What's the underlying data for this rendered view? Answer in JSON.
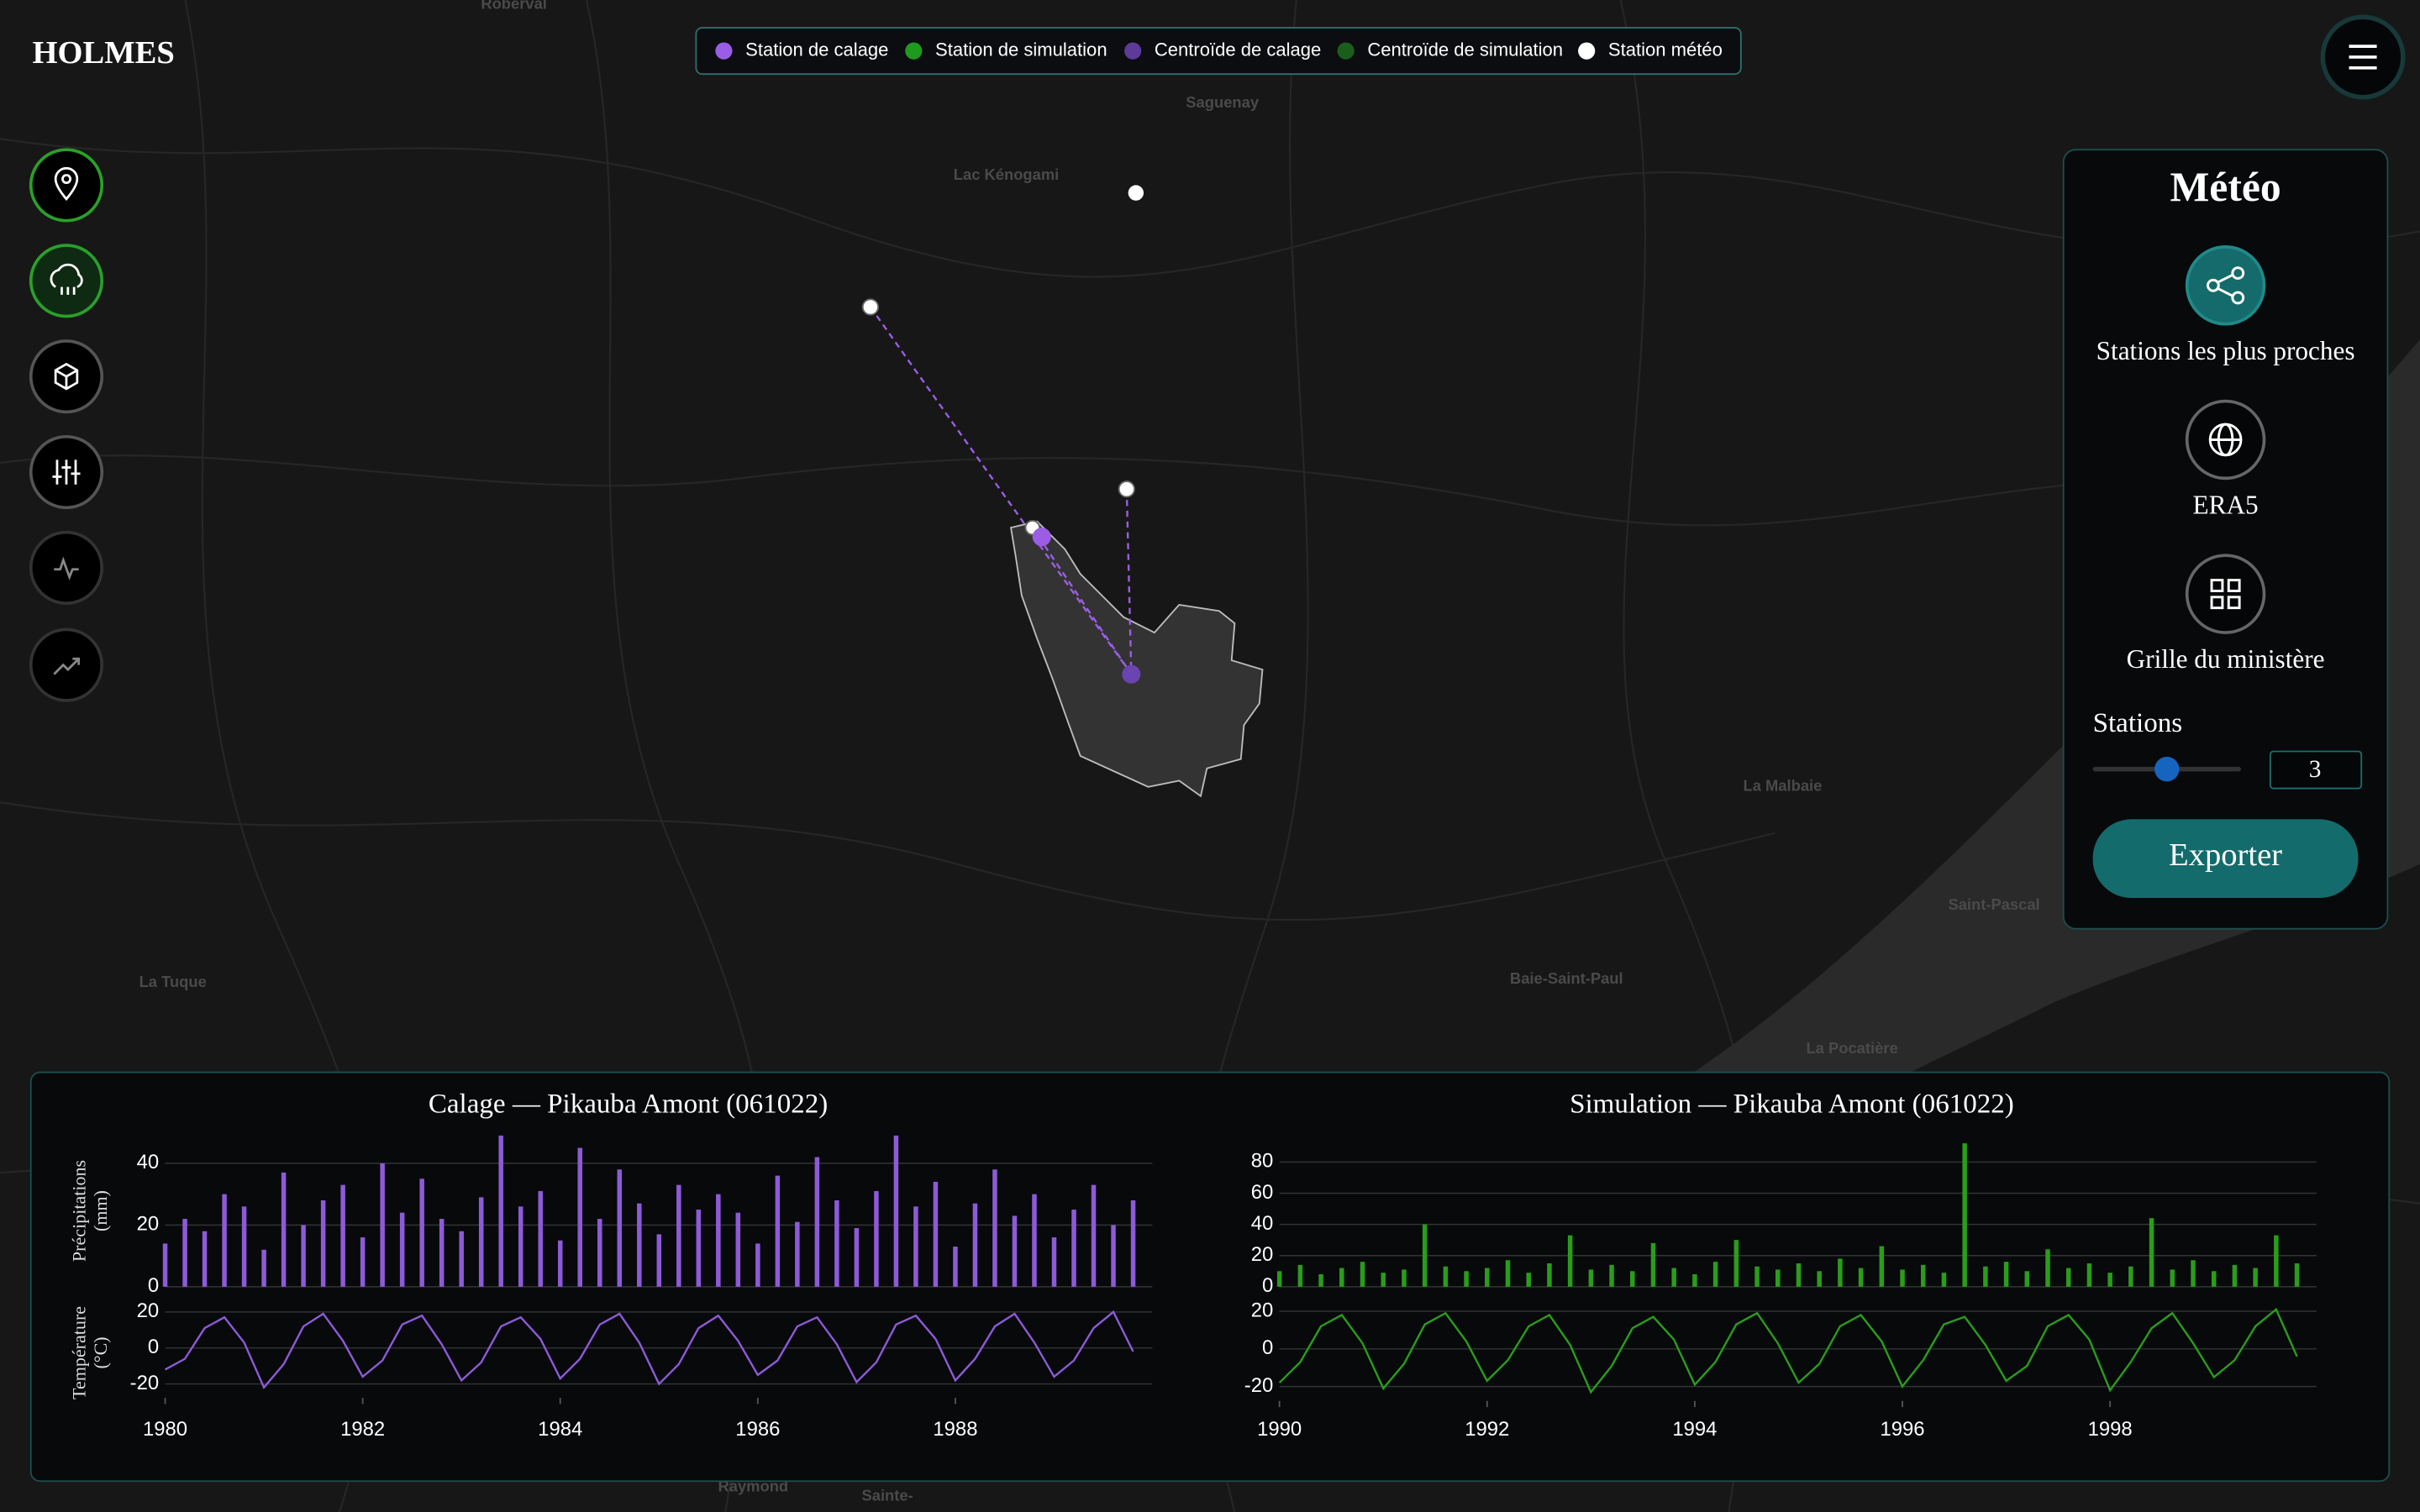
{
  "header": {
    "title": "HOLMES"
  },
  "legend": [
    {
      "label": "Station de calage",
      "color": "#9b5de5"
    },
    {
      "label": "Station de simulation",
      "color": "#1f9a1f"
    },
    {
      "label": "Centroïde de calage",
      "color": "#5e3a99"
    },
    {
      "label": "Centroïde de simulation",
      "color": "#1b5e1b"
    },
    {
      "label": "Station météo",
      "color": "#ffffff"
    }
  ],
  "map_labels": [
    "Roberval",
    "Saguenay",
    "Lac Kénogami",
    "La Malbaie",
    "Saint-Pascal",
    "La Tuque",
    "Baie-Saint-Paul",
    "La Pocatière",
    "Raymond",
    "Sainte-"
  ],
  "panel": {
    "title": "Météo",
    "options": [
      "Stations les plus proches",
      "ERA5",
      "Grille du ministère"
    ],
    "stations_label": "Stations",
    "stations_value": 3,
    "export": "Exporter"
  },
  "chart_data": [
    {
      "type": "bar",
      "title": "Calage — Pikauba Amont (061022)",
      "ylabel": "Précipitations (mm)",
      "color": "#8e5ad8",
      "x": [
        1980,
        1980.2,
        1980.4,
        1980.6,
        1980.8,
        1981,
        1981.2,
        1981.4,
        1981.6,
        1981.8,
        1982,
        1982.2,
        1982.4,
        1982.6,
        1982.8,
        1983,
        1983.2,
        1983.4,
        1983.6,
        1983.8,
        1984,
        1984.2,
        1984.4,
        1984.6,
        1984.8,
        1985,
        1985.2,
        1985.4,
        1985.6,
        1985.8,
        1986,
        1986.2,
        1986.4,
        1986.6,
        1986.8,
        1987,
        1987.2,
        1987.4,
        1987.6,
        1987.8,
        1988,
        1988.2,
        1988.4,
        1988.6,
        1988.8,
        1989,
        1989.2,
        1989.4,
        1989.6,
        1989.8
      ],
      "values": [
        14,
        22,
        18,
        30,
        26,
        12,
        37,
        20,
        28,
        33,
        16,
        40,
        24,
        35,
        22,
        18,
        29,
        49,
        26,
        31,
        15,
        45,
        22,
        38,
        27,
        17,
        33,
        25,
        30,
        24,
        14,
        36,
        21,
        42,
        28,
        19,
        31,
        49,
        26,
        34,
        13,
        27,
        38,
        23,
        30,
        16,
        25,
        33,
        20,
        28
      ],
      "xlim": [
        1980,
        1989.9
      ],
      "ylim": [
        0,
        50
      ],
      "yticks": [
        0,
        20,
        40
      ],
      "grid": true
    },
    {
      "type": "line",
      "ylabel": "Température (°C)",
      "color": "#8e5ad8",
      "x": [
        1980,
        1980.2,
        1980.4,
        1980.6,
        1980.8,
        1981,
        1981.2,
        1981.4,
        1981.6,
        1981.8,
        1982,
        1982.2,
        1982.4,
        1982.6,
        1982.8,
        1983,
        1983.2,
        1983.4,
        1983.6,
        1983.8,
        1984,
        1984.2,
        1984.4,
        1984.6,
        1984.8,
        1985,
        1985.2,
        1985.4,
        1985.6,
        1985.8,
        1986,
        1986.2,
        1986.4,
        1986.6,
        1986.8,
        1987,
        1987.2,
        1987.4,
        1987.6,
        1987.8,
        1988,
        1988.2,
        1988.4,
        1988.6,
        1988.8,
        1989,
        1989.2,
        1989.4,
        1989.6,
        1989.8
      ],
      "values": [
        -12,
        -6,
        11,
        17,
        3,
        -22,
        -9,
        12,
        19,
        4,
        -16,
        -7,
        13,
        18,
        2,
        -18,
        -8,
        12,
        17,
        5,
        -17,
        -6,
        13,
        19,
        3,
        -20,
        -9,
        11,
        18,
        4,
        -15,
        -7,
        12,
        17,
        2,
        -19,
        -8,
        13,
        18,
        5,
        -18,
        -6,
        12,
        19,
        3,
        -16,
        -7,
        11,
        20,
        -2
      ],
      "xlim": [
        1980,
        1989.9
      ],
      "ylim": [
        -26,
        22
      ],
      "yticks": [
        -20,
        0,
        20
      ],
      "xticks": [
        1980,
        1982,
        1984,
        1986,
        1988
      ],
      "grid": true
    },
    {
      "type": "bar",
      "title": "Simulation — Pikauba Amont (061022)",
      "color": "#2a9d1a",
      "x": [
        1990,
        1990.2,
        1990.4,
        1990.6,
        1990.8,
        1991,
        1991.2,
        1991.4,
        1991.6,
        1991.8,
        1992,
        1992.2,
        1992.4,
        1992.6,
        1992.8,
        1993,
        1993.2,
        1993.4,
        1993.6,
        1993.8,
        1994,
        1994.2,
        1994.4,
        1994.6,
        1994.8,
        1995,
        1995.2,
        1995.4,
        1995.6,
        1995.8,
        1996,
        1996.2,
        1996.4,
        1996.6,
        1996.8,
        1997,
        1997.2,
        1997.4,
        1997.6,
        1997.8,
        1998,
        1998.2,
        1998.4,
        1998.6,
        1998.8,
        1999,
        1999.2,
        1999.4,
        1999.6,
        1999.8
      ],
      "values": [
        10,
        14,
        8,
        12,
        16,
        9,
        11,
        40,
        13,
        10,
        12,
        17,
        9,
        15,
        33,
        11,
        14,
        10,
        28,
        12,
        8,
        16,
        30,
        13,
        11,
        15,
        10,
        18,
        12,
        26,
        11,
        14,
        9,
        92,
        13,
        16,
        10,
        24,
        12,
        15,
        9,
        13,
        44,
        11,
        17,
        10,
        14,
        12,
        33,
        15
      ],
      "xlim": [
        1990,
        1999.9
      ],
      "ylim": [
        0,
        95
      ],
      "yticks": [
        0,
        20,
        40,
        60,
        80
      ],
      "grid": true
    },
    {
      "type": "line",
      "color": "#2a9d1a",
      "x": [
        1990,
        1990.2,
        1990.4,
        1990.6,
        1990.8,
        1991,
        1991.2,
        1991.4,
        1991.6,
        1991.8,
        1992,
        1992.2,
        1992.4,
        1992.6,
        1992.8,
        1993,
        1993.2,
        1993.4,
        1993.6,
        1993.8,
        1994,
        1994.2,
        1994.4,
        1994.6,
        1994.8,
        1995,
        1995.2,
        1995.4,
        1995.6,
        1995.8,
        1996,
        1996.2,
        1996.4,
        1996.6,
        1996.8,
        1997,
        1997.2,
        1997.4,
        1997.6,
        1997.8,
        1998,
        1998.2,
        1998.4,
        1998.6,
        1998.8,
        1999,
        1999.2,
        1999.4,
        1999.6,
        1999.8
      ],
      "values": [
        -18,
        -7,
        12,
        18,
        3,
        -21,
        -8,
        13,
        19,
        4,
        -17,
        -6,
        12,
        18,
        2,
        -23,
        -9,
        11,
        17,
        5,
        -19,
        -7,
        13,
        19,
        3,
        -18,
        -8,
        12,
        18,
        4,
        -20,
        -6,
        13,
        17,
        2,
        -17,
        -9,
        12,
        18,
        5,
        -22,
        -7,
        11,
        19,
        3,
        -15,
        -6,
        12,
        21,
        -4
      ],
      "xlim": [
        1990,
        1999.9
      ],
      "ylim": [
        -26,
        24
      ],
      "yticks": [
        -20,
        0,
        20
      ],
      "xticks": [
        1990,
        1992,
        1994,
        1996,
        1998
      ],
      "grid": true
    }
  ]
}
